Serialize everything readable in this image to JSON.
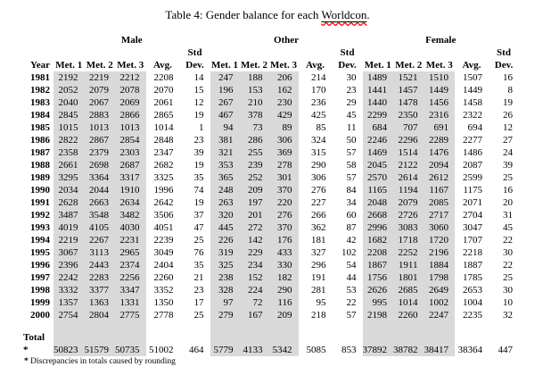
{
  "title": {
    "prefix": "Table 4: Gender balance for each ",
    "underlined_word": "Worldcon",
    "suffix": "."
  },
  "colors": {
    "shade": "#d9d9d9",
    "wavy_underline": "#ff0000"
  },
  "table": {
    "headers": {
      "year": "Year",
      "met1": "Met. 1",
      "met2": "Met. 2",
      "met3": "Met. 3",
      "avg": "Avg.",
      "std_line1": "Std",
      "std_line2": "Dev."
    },
    "groups": [
      {
        "label": "Male"
      },
      {
        "label": "Other"
      },
      {
        "label": "Female"
      }
    ],
    "rows": [
      {
        "year": "1981",
        "values": [
          2192,
          2219,
          2212,
          2208,
          14,
          247,
          188,
          206,
          214,
          30,
          1489,
          1521,
          1510,
          1507,
          16
        ]
      },
      {
        "year": "1982",
        "values": [
          2052,
          2079,
          2078,
          2070,
          15,
          196,
          153,
          162,
          170,
          23,
          1441,
          1457,
          1449,
          1449,
          8
        ]
      },
      {
        "year": "1983",
        "values": [
          2040,
          2067,
          2069,
          2061,
          12,
          267,
          210,
          230,
          236,
          29,
          1440,
          1478,
          1456,
          1458,
          19
        ]
      },
      {
        "year": "1984",
        "values": [
          2845,
          2883,
          2866,
          2865,
          19,
          467,
          378,
          429,
          425,
          45,
          2299,
          2350,
          2316,
          2322,
          26
        ]
      },
      {
        "year": "1985",
        "values": [
          1015,
          1013,
          1013,
          1014,
          1,
          94,
          73,
          89,
          85,
          11,
          684,
          707,
          691,
          694,
          12
        ]
      },
      {
        "year": "1986",
        "values": [
          2822,
          2867,
          2854,
          2848,
          23,
          381,
          286,
          306,
          324,
          50,
          2246,
          2296,
          2289,
          2277,
          27
        ]
      },
      {
        "year": "1987",
        "values": [
          2358,
          2379,
          2303,
          2347,
          39,
          321,
          255,
          369,
          315,
          57,
          1469,
          1514,
          1476,
          1486,
          24
        ]
      },
      {
        "year": "1988",
        "values": [
          2661,
          2698,
          2687,
          2682,
          19,
          353,
          239,
          278,
          290,
          58,
          2045,
          2122,
          2094,
          2087,
          39
        ]
      },
      {
        "year": "1989",
        "values": [
          3295,
          3364,
          3317,
          3325,
          35,
          365,
          252,
          301,
          306,
          57,
          2570,
          2614,
          2612,
          2599,
          25
        ]
      },
      {
        "year": "1990",
        "values": [
          2034,
          2044,
          1910,
          1996,
          74,
          248,
          209,
          370,
          276,
          84,
          1165,
          1194,
          1167,
          1175,
          16
        ]
      },
      {
        "year": "1991",
        "values": [
          2628,
          2663,
          2634,
          2642,
          19,
          263,
          197,
          220,
          227,
          34,
          2048,
          2079,
          2085,
          2071,
          20
        ]
      },
      {
        "year": "1992",
        "values": [
          3487,
          3548,
          3482,
          3506,
          37,
          320,
          201,
          276,
          266,
          60,
          2668,
          2726,
          2717,
          2704,
          31
        ]
      },
      {
        "year": "1993",
        "values": [
          4019,
          4105,
          4030,
          4051,
          47,
          445,
          272,
          370,
          362,
          87,
          2996,
          3083,
          3060,
          3047,
          45
        ]
      },
      {
        "year": "1994",
        "values": [
          2219,
          2267,
          2231,
          2239,
          25,
          226,
          142,
          176,
          181,
          42,
          1682,
          1718,
          1720,
          1707,
          22
        ]
      },
      {
        "year": "1995",
        "values": [
          3067,
          3113,
          2965,
          3049,
          76,
          319,
          229,
          433,
          327,
          102,
          2208,
          2252,
          2196,
          2218,
          30
        ]
      },
      {
        "year": "1996",
        "values": [
          2396,
          2443,
          2374,
          2404,
          35,
          325,
          234,
          330,
          296,
          54,
          1867,
          1911,
          1884,
          1887,
          22
        ]
      },
      {
        "year": "1997",
        "values": [
          2242,
          2283,
          2256,
          2260,
          21,
          238,
          152,
          182,
          191,
          44,
          1756,
          1801,
          1798,
          1785,
          25
        ]
      },
      {
        "year": "1998",
        "values": [
          3332,
          3377,
          3347,
          3352,
          23,
          328,
          224,
          290,
          281,
          53,
          2626,
          2685,
          2649,
          2653,
          30
        ]
      },
      {
        "year": "1999",
        "values": [
          1357,
          1363,
          1331,
          1350,
          17,
          97,
          72,
          116,
          95,
          22,
          995,
          1014,
          1002,
          1004,
          10
        ]
      },
      {
        "year": "2000",
        "values": [
          2754,
          2804,
          2775,
          2778,
          25,
          279,
          167,
          209,
          218,
          57,
          2198,
          2260,
          2247,
          2235,
          32
        ]
      }
    ],
    "total": {
      "label": "Total",
      "asterisk": "*",
      "values": [
        50823,
        51579,
        50735,
        51002,
        464,
        5779,
        4133,
        5342,
        5085,
        853,
        37892,
        38782,
        38417,
        38364,
        447
      ]
    }
  },
  "footnote": {
    "marker": "*",
    "text": " Discrepancies in totals caused by rounding"
  }
}
